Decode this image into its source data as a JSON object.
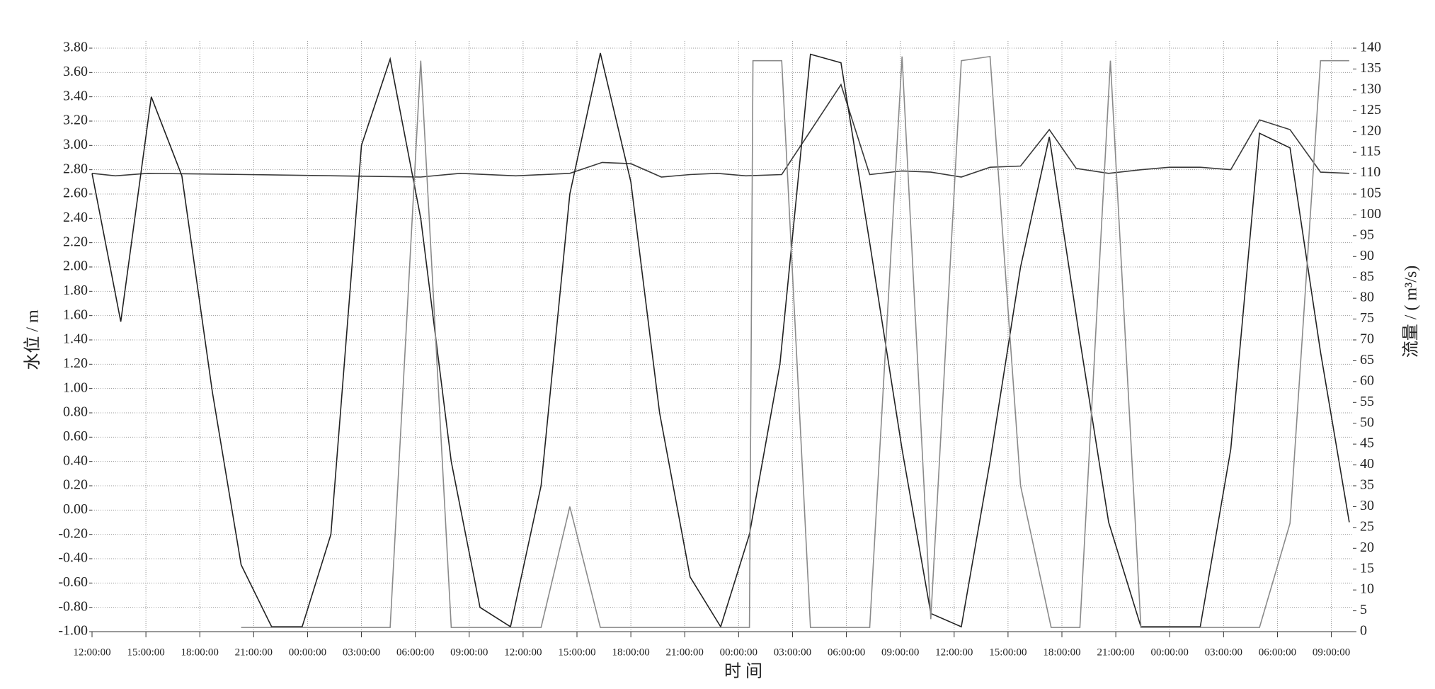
{
  "chart_data": {
    "type": "line",
    "xlabel": "时 间",
    "ylabel": "水位 / m",
    "y2label": "流量 / ( m³/s)",
    "grid": true,
    "xlim": [
      0,
      70.2
    ],
    "xticks": [
      {
        "value": 0,
        "label": "12:00:00"
      },
      {
        "value": 3,
        "label": "15:00:00"
      },
      {
        "value": 6,
        "label": "18:00:00"
      },
      {
        "value": 9,
        "label": "21:00:00"
      },
      {
        "value": 12,
        "label": "00:00:00"
      },
      {
        "value": 15,
        "label": "03:00:00"
      },
      {
        "value": 18,
        "label": "06:00:00"
      },
      {
        "value": 21,
        "label": "09:00:00"
      },
      {
        "value": 24,
        "label": "12:00:00"
      },
      {
        "value": 27,
        "label": "15:00:00"
      },
      {
        "value": 30,
        "label": "18:00:00"
      },
      {
        "value": 33,
        "label": "21:00:00"
      },
      {
        "value": 36,
        "label": "00:00:00"
      },
      {
        "value": 39,
        "label": "03:00:00"
      },
      {
        "value": 42,
        "label": "06:00:00"
      },
      {
        "value": 45,
        "label": "09:00:00"
      },
      {
        "value": 48,
        "label": "12:00:00"
      },
      {
        "value": 51,
        "label": "15:00:00"
      },
      {
        "value": 54,
        "label": "18:00:00"
      },
      {
        "value": 57,
        "label": "21:00:00"
      },
      {
        "value": 60,
        "label": "00:00:00"
      },
      {
        "value": 63,
        "label": "03:00:00"
      },
      {
        "value": 66,
        "label": "06:00:00"
      },
      {
        "value": 69,
        "label": "09:00:00"
      }
    ],
    "ylim": [
      -1.0,
      3.8
    ],
    "yticks": [
      {
        "value": -1.0,
        "label": "-1.00"
      },
      {
        "value": -0.8,
        "label": "-0.80"
      },
      {
        "value": -0.6,
        "label": "-0.60"
      },
      {
        "value": -0.4,
        "label": "-0.40"
      },
      {
        "value": -0.2,
        "label": "-0.20"
      },
      {
        "value": 0,
        "label": "0.00"
      },
      {
        "value": 0.2,
        "label": "0.20"
      },
      {
        "value": 0.4,
        "label": "0.40"
      },
      {
        "value": 0.6,
        "label": "0.60"
      },
      {
        "value": 0.8,
        "label": "0.80"
      },
      {
        "value": 1.0,
        "label": "1.00"
      },
      {
        "value": 1.2,
        "label": "1.20"
      },
      {
        "value": 1.4,
        "label": "1.40"
      },
      {
        "value": 1.6,
        "label": "1.60"
      },
      {
        "value": 1.8,
        "label": "1.80"
      },
      {
        "value": 2.0,
        "label": "2.00"
      },
      {
        "value": 2.2,
        "label": "2.20"
      },
      {
        "value": 2.4,
        "label": "2.40"
      },
      {
        "value": 2.6,
        "label": "2.60"
      },
      {
        "value": 2.8,
        "label": "2.80"
      },
      {
        "value": 3.0,
        "label": "3.00"
      },
      {
        "value": 3.2,
        "label": "3.20"
      },
      {
        "value": 3.4,
        "label": "3.40"
      },
      {
        "value": 3.6,
        "label": "3.60"
      },
      {
        "value": 3.8,
        "label": "3.80"
      }
    ],
    "y2lim": [
      0,
      140
    ],
    "y2ticks": [
      0,
      5,
      10,
      15,
      20,
      25,
      30,
      35,
      40,
      45,
      50,
      55,
      60,
      65,
      70,
      75,
      80,
      85,
      90,
      95,
      100,
      105,
      110,
      115,
      120,
      125,
      130,
      135,
      140
    ],
    "series": [
      {
        "color": "#3a3a3a",
        "x": [
          0,
          1.3,
          3.1,
          8.6,
          18.3,
          20.5,
          23.6,
          26.6,
          28.4,
          30.0,
          31.7,
          33.3,
          34.8,
          36.4,
          38.4,
          41.7,
          43.3,
          45.1,
          46.7,
          48.4,
          50.0,
          51.7,
          53.3,
          54.8,
          56.6,
          58.4,
          60.0,
          61.7,
          63.4,
          65.0,
          66.7,
          68.4,
          70.0
        ],
        "values": [
          2.77,
          2.75,
          2.77,
          2.76,
          2.74,
          2.77,
          2.75,
          2.77,
          2.86,
          2.85,
          2.74,
          2.76,
          2.77,
          2.75,
          2.76,
          3.5,
          2.76,
          2.79,
          2.78,
          2.74,
          2.82,
          2.83,
          3.13,
          2.81,
          2.77,
          2.8,
          2.82,
          2.82,
          2.8,
          3.21,
          3.13,
          2.78,
          2.77
        ]
      },
      {
        "color": "#222222",
        "x": [
          0,
          1.6,
          3.3,
          5.0,
          6.7,
          8.3,
          10.0,
          11.7,
          13.3,
          15.0,
          16.6,
          18.3,
          20.0,
          21.6,
          23.3,
          25.0,
          26.6,
          28.3,
          30.0,
          31.6,
          33.3,
          35.0,
          36.6,
          38.3,
          40.0,
          41.7,
          43.3,
          45.1,
          46.7,
          48.4,
          50.0,
          51.7,
          53.3,
          55.0,
          56.6,
          58.4,
          60.0,
          61.7,
          63.4,
          65.0,
          66.7,
          68.4,
          70.0
        ],
        "values": [
          2.77,
          1.55,
          3.4,
          2.75,
          0.97,
          -0.45,
          -0.96,
          -0.96,
          -0.2,
          3.0,
          3.71,
          2.4,
          0.4,
          -0.8,
          -0.96,
          0.2,
          2.6,
          3.76,
          2.7,
          0.8,
          -0.55,
          -0.96,
          -0.2,
          1.2,
          3.75,
          3.68,
          2.2,
          0.5,
          -0.85,
          -0.96,
          0.4,
          2.0,
          3.07,
          1.4,
          -0.1,
          -0.96,
          -0.96,
          -0.96,
          0.5,
          3.1,
          2.98,
          1.3,
          -0.1
        ]
      },
      {
        "color": "#8a8a8a",
        "axis": "y2",
        "x": [
          8.3,
          16.6,
          18.3,
          20.0,
          25.0,
          26.6,
          28.3,
          35.0,
          36.6,
          36.8,
          38.4,
          40.0,
          43.3,
          45.1,
          46.7,
          48.4,
          50.0,
          51.7,
          53.4,
          55.0,
          56.7,
          58.4,
          63.4,
          65.0,
          66.7,
          68.4,
          70.0
        ],
        "values": [
          1,
          1,
          137,
          1,
          1,
          30,
          1,
          1,
          1,
          137,
          137,
          1,
          1,
          138,
          3,
          137,
          138,
          35,
          1,
          1,
          137,
          1,
          1,
          1,
          26,
          137,
          137
        ]
      }
    ]
  }
}
